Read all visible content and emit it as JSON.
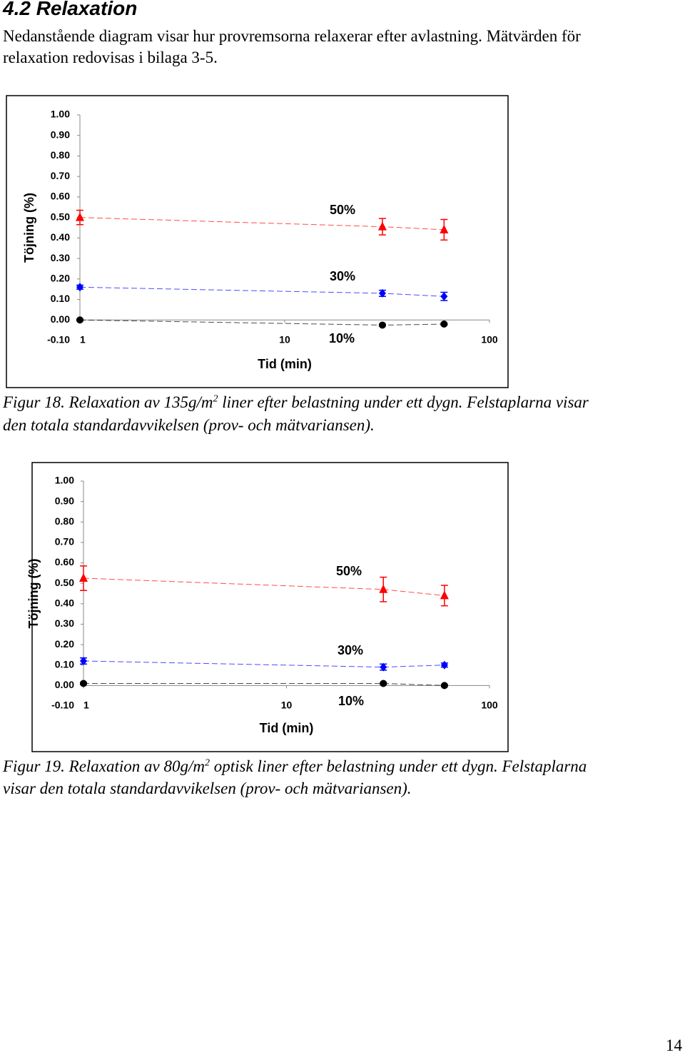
{
  "heading": "4.2 Relaxation",
  "paragraph": [
    "Nedanstående diagram visar hur provremsorna relaxerar efter avlastning.  Mätvärden för",
    "relaxation redovisas i bilaga 3-5."
  ],
  "captions": [
    {
      "start": "Figur 18. Relaxation av 135g/m",
      "sup": "2",
      "end": " liner efter belastning under ett dygn. Felstaplarna visar",
      "line2": "den totala standardavvikelsen (prov- och mätvariansen)."
    },
    {
      "start": "Figur 19. Relaxation av 80g/m",
      "sup": "2",
      "end": " optisk liner efter belastning under ett dygn. Felstaplarna",
      "line2": "visar den totala standardavvikelsen (prov- och mätvariansen)."
    }
  ],
  "page_number": "14",
  "chart_data": [
    {
      "type": "scatter",
      "x_label": "Tid (min)",
      "y_label": "Töjning (%)",
      "log_x": true,
      "x": [
        1,
        30,
        60
      ],
      "xlim": [
        1,
        100
      ],
      "xticks": [
        1,
        10,
        100
      ],
      "ylim": [
        -0.1,
        1.0
      ],
      "yticks": [
        {
          "value": -0.1,
          "label": "-0.10"
        },
        {
          "value": 0,
          "label": "0.00"
        },
        {
          "value": 0.1,
          "label": "0.10"
        },
        {
          "value": 0.2,
          "label": "0.20"
        },
        {
          "value": 0.3,
          "label": "0.30"
        },
        {
          "value": 0.4,
          "label": "0.40"
        },
        {
          "value": 0.5,
          "label": "0.50"
        },
        {
          "value": 0.6,
          "label": "0.60"
        },
        {
          "value": 0.7,
          "label": "0.70"
        },
        {
          "value": 0.8,
          "label": "0.80"
        },
        {
          "value": 0.9,
          "label": "0.90"
        },
        {
          "value": 1.0,
          "label": "1.00"
        }
      ],
      "series": [
        {
          "name": "50%",
          "color": "#ff0000",
          "marker": "triangle",
          "values": [
            0.5,
            0.455,
            0.44
          ],
          "errors": [
            0.035,
            0.04,
            0.05
          ]
        },
        {
          "name": "30%",
          "color": "#0000ff",
          "marker": "diamond",
          "values": [
            0.16,
            0.13,
            0.115
          ],
          "errors": [
            0.01,
            0.015,
            0.02
          ]
        },
        {
          "name": "10%",
          "color": "#000000",
          "marker": "circle",
          "values": [
            0.0,
            -0.025,
            -0.02
          ],
          "errors": [
            0.004,
            0.004,
            0.004
          ]
        }
      ]
    },
    {
      "type": "scatter",
      "x_label": "Tid (min)",
      "y_label": "Töjning (%)",
      "log_x": true,
      "x": [
        1,
        30,
        60
      ],
      "xlim": [
        1,
        100
      ],
      "xticks": [
        1,
        10,
        100
      ],
      "ylim": [
        -0.1,
        1.0
      ],
      "yticks": [
        {
          "value": -0.1,
          "label": "-0.10"
        },
        {
          "value": 0,
          "label": "0.00"
        },
        {
          "value": 0.1,
          "label": "0.10"
        },
        {
          "value": 0.2,
          "label": "0.20"
        },
        {
          "value": 0.3,
          "label": "0.30"
        },
        {
          "value": 0.4,
          "label": "0.40"
        },
        {
          "value": 0.5,
          "label": "0.50"
        },
        {
          "value": 0.6,
          "label": "0.60"
        },
        {
          "value": 0.7,
          "label": "0.70"
        },
        {
          "value": 0.8,
          "label": "0.80"
        },
        {
          "value": 0.9,
          "label": "0.90"
        },
        {
          "value": 1.0,
          "label": "1.00"
        }
      ],
      "series": [
        {
          "name": "50%",
          "color": "#ff0000",
          "marker": "triangle",
          "values": [
            0.525,
            0.47,
            0.44
          ],
          "errors": [
            0.06,
            0.06,
            0.05
          ]
        },
        {
          "name": "30%",
          "color": "#0000ff",
          "marker": "diamond",
          "values": [
            0.12,
            0.09,
            0.1
          ],
          "errors": [
            0.015,
            0.015,
            0.01
          ]
        },
        {
          "name": "10%",
          "color": "#000000",
          "marker": "circle",
          "values": [
            0.01,
            0.01,
            0.0
          ],
          "errors": [
            0.004,
            0.004,
            0.004
          ]
        }
      ]
    }
  ]
}
